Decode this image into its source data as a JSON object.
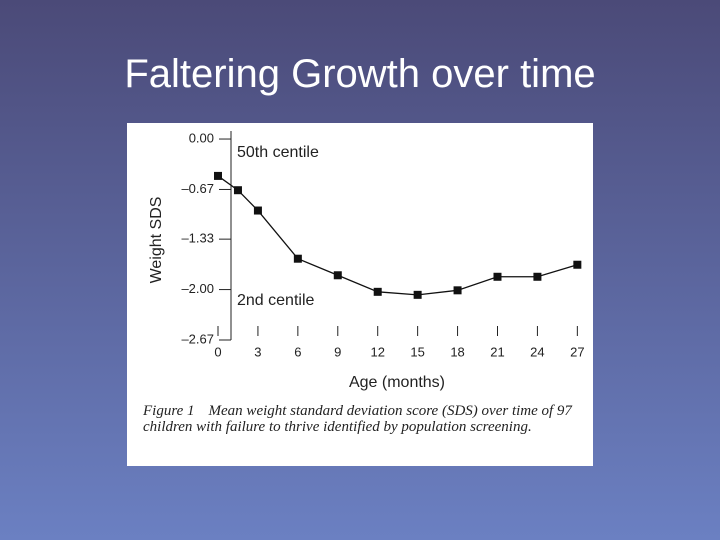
{
  "slide_title": "Faltering Growth over time",
  "chart_data": {
    "type": "line",
    "annotations": [
      "50th centile",
      "2nd centile"
    ],
    "x_label": "Age (months)",
    "y_label": "Weight SDS",
    "x": [
      0,
      1.5,
      3,
      6,
      9,
      12,
      15,
      18,
      21,
      24,
      27
    ],
    "series": [
      {
        "color": "#111111",
        "values": [
          -0.49,
          -0.68,
          -0.95,
          -1.59,
          -1.81,
          -2.03,
          -2.07,
          -2.01,
          -1.83,
          -1.83,
          -1.67
        ]
      }
    ],
    "xlim": [
      0,
      27.5
    ],
    "xticks": [
      0,
      3,
      6,
      9,
      12,
      15,
      18,
      21,
      24,
      27
    ],
    "ylim": [
      -2.67,
      0.12
    ],
    "yticks": [
      {
        "value": 0,
        "label": "0.00"
      },
      {
        "value": -0.67,
        "label": "–0.67"
      },
      {
        "value": -1.33,
        "label": "–1.33"
      },
      {
        "value": -2,
        "label": "–2.00"
      },
      {
        "value": -2.67,
        "label": "–2.67"
      }
    ],
    "caption_label": "Figure 1",
    "caption": "Mean weight standard deviation score (SDS) over time of 97 children with failure to thrive identified by population screening."
  }
}
